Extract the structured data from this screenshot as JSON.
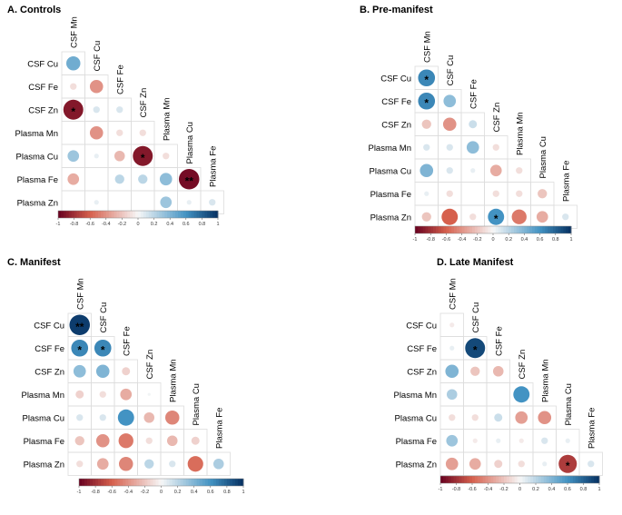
{
  "chart_data": [
    {
      "type": "correlogram",
      "title": "A. Controls",
      "labels": [
        "CSF Mn",
        "CSF Cu",
        "CSF Fe",
        "CSF Zn",
        "Plasma Mn",
        "Plasma Cu",
        "Plasma Fe",
        "Plasma Zn"
      ],
      "cells": [
        {
          "row": "CSF Cu",
          "col": "CSF Mn",
          "r": 0.45,
          "sig": ""
        },
        {
          "row": "CSF Fe",
          "col": "CSF Mn",
          "r": -0.1,
          "sig": ""
        },
        {
          "row": "CSF Fe",
          "col": "CSF Cu",
          "r": -0.4,
          "sig": ""
        },
        {
          "row": "CSF Zn",
          "col": "CSF Mn",
          "r": -0.9,
          "sig": "*"
        },
        {
          "row": "CSF Zn",
          "col": "CSF Cu",
          "r": 0.1,
          "sig": ""
        },
        {
          "row": "CSF Zn",
          "col": "CSF Fe",
          "r": 0.1,
          "sig": ""
        },
        {
          "row": "Plasma Mn",
          "col": "CSF Cu",
          "r": -0.4,
          "sig": ""
        },
        {
          "row": "Plasma Mn",
          "col": "CSF Fe",
          "r": -0.1,
          "sig": ""
        },
        {
          "row": "Plasma Mn",
          "col": "CSF Zn",
          "r": -0.1,
          "sig": ""
        },
        {
          "row": "Plasma Cu",
          "col": "CSF Mn",
          "r": 0.3,
          "sig": ""
        },
        {
          "row": "Plasma Cu",
          "col": "CSF Cu",
          "r": 0.05,
          "sig": ""
        },
        {
          "row": "Plasma Cu",
          "col": "CSF Fe",
          "r": -0.25,
          "sig": ""
        },
        {
          "row": "Plasma Cu",
          "col": "CSF Zn",
          "r": -0.9,
          "sig": "*"
        },
        {
          "row": "Plasma Cu",
          "col": "Plasma Mn",
          "r": -0.1,
          "sig": ""
        },
        {
          "row": "Plasma Fe",
          "col": "CSF Mn",
          "r": -0.3,
          "sig": ""
        },
        {
          "row": "Plasma Fe",
          "col": "CSF Fe",
          "r": 0.2,
          "sig": ""
        },
        {
          "row": "Plasma Fe",
          "col": "CSF Zn",
          "r": 0.2,
          "sig": ""
        },
        {
          "row": "Plasma Fe",
          "col": "Plasma Mn",
          "r": 0.35,
          "sig": ""
        },
        {
          "row": "Plasma Fe",
          "col": "Plasma Cu",
          "r": -0.95,
          "sig": "**"
        },
        {
          "row": "Plasma Zn",
          "col": "CSF Cu",
          "r": 0.05,
          "sig": ""
        },
        {
          "row": "Plasma Zn",
          "col": "Plasma Mn",
          "r": 0.3,
          "sig": ""
        },
        {
          "row": "Plasma Zn",
          "col": "Plasma Cu",
          "r": 0.05,
          "sig": ""
        },
        {
          "row": "Plasma Zn",
          "col": "Plasma Fe",
          "r": 0.1,
          "sig": ""
        }
      ]
    },
    {
      "type": "correlogram",
      "title": "B. Pre-manifest",
      "labels": [
        "CSF Mn",
        "CSF Cu",
        "CSF Fe",
        "CSF Zn",
        "Plasma Mn",
        "Plasma Cu",
        "Plasma Fe",
        "Plasma Zn"
      ],
      "cells": [
        {
          "row": "CSF Cu",
          "col": "CSF Mn",
          "r": 0.65,
          "sig": "*"
        },
        {
          "row": "CSF Fe",
          "col": "CSF Mn",
          "r": 0.65,
          "sig": "*"
        },
        {
          "row": "CSF Fe",
          "col": "CSF Cu",
          "r": 0.35,
          "sig": ""
        },
        {
          "row": "CSF Zn",
          "col": "CSF Mn",
          "r": -0.2,
          "sig": ""
        },
        {
          "row": "CSF Zn",
          "col": "CSF Cu",
          "r": -0.4,
          "sig": ""
        },
        {
          "row": "CSF Zn",
          "col": "CSF Fe",
          "r": 0.15,
          "sig": ""
        },
        {
          "row": "Plasma Mn",
          "col": "CSF Mn",
          "r": 0.1,
          "sig": ""
        },
        {
          "row": "Plasma Mn",
          "col": "CSF Cu",
          "r": 0.1,
          "sig": ""
        },
        {
          "row": "Plasma Mn",
          "col": "CSF Fe",
          "r": 0.35,
          "sig": ""
        },
        {
          "row": "Plasma Mn",
          "col": "CSF Zn",
          "r": -0.1,
          "sig": ""
        },
        {
          "row": "Plasma Cu",
          "col": "CSF Mn",
          "r": 0.4,
          "sig": ""
        },
        {
          "row": "Plasma Cu",
          "col": "CSF Cu",
          "r": 0.1,
          "sig": ""
        },
        {
          "row": "Plasma Cu",
          "col": "CSF Fe",
          "r": 0.05,
          "sig": ""
        },
        {
          "row": "Plasma Cu",
          "col": "CSF Zn",
          "r": -0.3,
          "sig": ""
        },
        {
          "row": "Plasma Cu",
          "col": "Plasma Mn",
          "r": -0.1,
          "sig": ""
        },
        {
          "row": "Plasma Fe",
          "col": "CSF Mn",
          "r": 0.05,
          "sig": ""
        },
        {
          "row": "Plasma Fe",
          "col": "CSF Cu",
          "r": -0.1,
          "sig": ""
        },
        {
          "row": "Plasma Fe",
          "col": "CSF Zn",
          "r": -0.1,
          "sig": ""
        },
        {
          "row": "Plasma Fe",
          "col": "Plasma Mn",
          "r": -0.1,
          "sig": ""
        },
        {
          "row": "Plasma Fe",
          "col": "Plasma Cu",
          "r": -0.2,
          "sig": ""
        },
        {
          "row": "Plasma Zn",
          "col": "CSF Mn",
          "r": -0.2,
          "sig": ""
        },
        {
          "row": "Plasma Zn",
          "col": "CSF Cu",
          "r": -0.6,
          "sig": ""
        },
        {
          "row": "Plasma Zn",
          "col": "CSF Fe",
          "r": -0.1,
          "sig": ""
        },
        {
          "row": "Plasma Zn",
          "col": "CSF Zn",
          "r": 0.6,
          "sig": "*"
        },
        {
          "row": "Plasma Zn",
          "col": "Plasma Mn",
          "r": -0.5,
          "sig": ""
        },
        {
          "row": "Plasma Zn",
          "col": "Plasma Cu",
          "r": -0.3,
          "sig": ""
        },
        {
          "row": "Plasma Zn",
          "col": "Plasma Fe",
          "r": 0.1,
          "sig": ""
        }
      ]
    },
    {
      "type": "correlogram",
      "title": "C. Manifest",
      "labels": [
        "CSF Mn",
        "CSF Cu",
        "CSF Fe",
        "CSF Zn",
        "Plasma Mn",
        "Plasma Cu",
        "Plasma Fe",
        "Plasma Zn"
      ],
      "cells": [
        {
          "row": "CSF Cu",
          "col": "CSF Mn",
          "r": 0.95,
          "sig": "**"
        },
        {
          "row": "CSF Fe",
          "col": "CSF Mn",
          "r": 0.65,
          "sig": "*"
        },
        {
          "row": "CSF Fe",
          "col": "CSF Cu",
          "r": 0.65,
          "sig": "*"
        },
        {
          "row": "CSF Zn",
          "col": "CSF Mn",
          "r": 0.35,
          "sig": ""
        },
        {
          "row": "CSF Zn",
          "col": "CSF Cu",
          "r": 0.4,
          "sig": ""
        },
        {
          "row": "CSF Zn",
          "col": "CSF Fe",
          "r": -0.15,
          "sig": ""
        },
        {
          "row": "Plasma Mn",
          "col": "CSF Mn",
          "r": -0.15,
          "sig": ""
        },
        {
          "row": "Plasma Mn",
          "col": "CSF Cu",
          "r": -0.1,
          "sig": ""
        },
        {
          "row": "Plasma Mn",
          "col": "CSF Fe",
          "r": -0.3,
          "sig": ""
        },
        {
          "row": "Plasma Mn",
          "col": "CSF Zn",
          "r": 0.02,
          "sig": ""
        },
        {
          "row": "Plasma Cu",
          "col": "CSF Mn",
          "r": 0.1,
          "sig": ""
        },
        {
          "row": "Plasma Cu",
          "col": "CSF Cu",
          "r": 0.1,
          "sig": ""
        },
        {
          "row": "Plasma Cu",
          "col": "CSF Fe",
          "r": 0.6,
          "sig": ""
        },
        {
          "row": "Plasma Cu",
          "col": "CSF Zn",
          "r": -0.25,
          "sig": ""
        },
        {
          "row": "Plasma Cu",
          "col": "Plasma Mn",
          "r": -0.45,
          "sig": ""
        },
        {
          "row": "Plasma Fe",
          "col": "CSF Mn",
          "r": -0.2,
          "sig": ""
        },
        {
          "row": "Plasma Fe",
          "col": "CSF Cu",
          "r": -0.4,
          "sig": ""
        },
        {
          "row": "Plasma Fe",
          "col": "CSF Fe",
          "r": -0.5,
          "sig": ""
        },
        {
          "row": "Plasma Fe",
          "col": "CSF Zn",
          "r": -0.1,
          "sig": ""
        },
        {
          "row": "Plasma Fe",
          "col": "Plasma Mn",
          "r": -0.25,
          "sig": ""
        },
        {
          "row": "Plasma Fe",
          "col": "Plasma Cu",
          "r": -0.15,
          "sig": ""
        },
        {
          "row": "Plasma Zn",
          "col": "CSF Mn",
          "r": -0.1,
          "sig": ""
        },
        {
          "row": "Plasma Zn",
          "col": "CSF Cu",
          "r": -0.3,
          "sig": ""
        },
        {
          "row": "Plasma Zn",
          "col": "CSF Fe",
          "r": -0.45,
          "sig": ""
        },
        {
          "row": "Plasma Zn",
          "col": "CSF Zn",
          "r": 0.2,
          "sig": ""
        },
        {
          "row": "Plasma Zn",
          "col": "Plasma Mn",
          "r": 0.1,
          "sig": ""
        },
        {
          "row": "Plasma Zn",
          "col": "Plasma Cu",
          "r": -0.55,
          "sig": ""
        },
        {
          "row": "Plasma Zn",
          "col": "Plasma Fe",
          "r": 0.25,
          "sig": ""
        }
      ]
    },
    {
      "type": "correlogram",
      "title": "D. Late Manifest",
      "labels": [
        "CSF Mn",
        "CSF Cu",
        "CSF Fe",
        "CSF Zn",
        "Plasma Mn",
        "Plasma Cu",
        "Plasma Fe",
        "Plasma Zn"
      ],
      "cells": [
        {
          "row": "CSF Cu",
          "col": "CSF Mn",
          "r": -0.05,
          "sig": ""
        },
        {
          "row": "CSF Fe",
          "col": "CSF Mn",
          "r": 0.05,
          "sig": ""
        },
        {
          "row": "CSF Fe",
          "col": "CSF Cu",
          "r": 0.9,
          "sig": "*"
        },
        {
          "row": "CSF Zn",
          "col": "CSF Mn",
          "r": 0.4,
          "sig": ""
        },
        {
          "row": "CSF Zn",
          "col": "CSF Cu",
          "r": -0.2,
          "sig": ""
        },
        {
          "row": "CSF Zn",
          "col": "CSF Fe",
          "r": -0.25,
          "sig": ""
        },
        {
          "row": "Plasma Mn",
          "col": "CSF Mn",
          "r": 0.25,
          "sig": ""
        },
        {
          "row": "Plasma Mn",
          "col": "CSF Zn",
          "r": 0.6,
          "sig": ""
        },
        {
          "row": "Plasma Cu",
          "col": "CSF Mn",
          "r": -0.1,
          "sig": ""
        },
        {
          "row": "Plasma Cu",
          "col": "CSF Cu",
          "r": -0.1,
          "sig": ""
        },
        {
          "row": "Plasma Cu",
          "col": "CSF Fe",
          "r": 0.15,
          "sig": ""
        },
        {
          "row": "Plasma Cu",
          "col": "CSF Zn",
          "r": -0.35,
          "sig": ""
        },
        {
          "row": "Plasma Cu",
          "col": "Plasma Mn",
          "r": -0.4,
          "sig": ""
        },
        {
          "row": "Plasma Fe",
          "col": "CSF Mn",
          "r": 0.3,
          "sig": ""
        },
        {
          "row": "Plasma Fe",
          "col": "CSF Cu",
          "r": -0.05,
          "sig": ""
        },
        {
          "row": "Plasma Fe",
          "col": "CSF Fe",
          "r": 0.05,
          "sig": ""
        },
        {
          "row": "Plasma Fe",
          "col": "CSF Zn",
          "r": -0.05,
          "sig": ""
        },
        {
          "row": "Plasma Fe",
          "col": "Plasma Mn",
          "r": 0.1,
          "sig": ""
        },
        {
          "row": "Plasma Fe",
          "col": "Plasma Cu",
          "r": 0.05,
          "sig": ""
        },
        {
          "row": "Plasma Zn",
          "col": "CSF Mn",
          "r": -0.35,
          "sig": ""
        },
        {
          "row": "Plasma Zn",
          "col": "CSF Cu",
          "r": -0.3,
          "sig": ""
        },
        {
          "row": "Plasma Zn",
          "col": "CSF Fe",
          "r": -0.15,
          "sig": ""
        },
        {
          "row": "Plasma Zn",
          "col": "CSF Zn",
          "r": -0.1,
          "sig": ""
        },
        {
          "row": "Plasma Zn",
          "col": "Plasma Mn",
          "r": 0.05,
          "sig": ""
        },
        {
          "row": "Plasma Zn",
          "col": "Plasma Cu",
          "r": -0.75,
          "sig": "*"
        },
        {
          "row": "Plasma Zn",
          "col": "Plasma Fe",
          "r": 0.1,
          "sig": ""
        }
      ]
    }
  ],
  "color_scale": {
    "ticks": [
      "-1",
      "-0.8",
      "-0.6",
      "-0.4",
      "-0.2",
      "0",
      "0.2",
      "0.4",
      "0.6",
      "0.8",
      "1"
    ],
    "range": [
      -1,
      1
    ],
    "neg_color": "#67001f",
    "mid_color": "#f7f7f7",
    "pos_color": "#053061"
  }
}
